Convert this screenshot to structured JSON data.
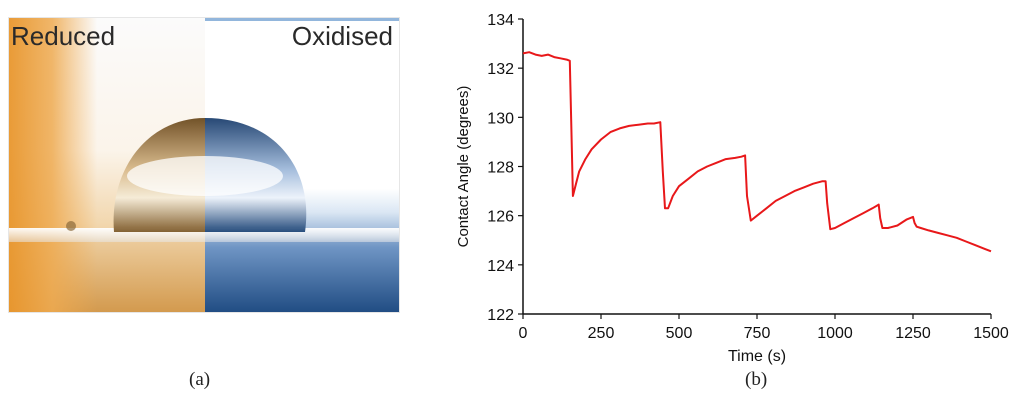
{
  "panel_a": {
    "label_left": "Reduced",
    "label_right": "Oxidised",
    "caption": "(a)",
    "colors": {
      "reduced": "#e8962d",
      "oxidised": "#2e5e98"
    }
  },
  "panel_b": {
    "caption": "(b)"
  },
  "chart_data": {
    "type": "line",
    "title": "",
    "xlabel": "Time (s)",
    "ylabel": "Contact Angle (degrees)",
    "xlim": [
      0,
      1500
    ],
    "ylim": [
      122,
      134
    ],
    "xticks": [
      0,
      250,
      500,
      750,
      1000,
      1250,
      1500
    ],
    "yticks": [
      122,
      124,
      126,
      128,
      130,
      132,
      134
    ],
    "grid": false,
    "legend": "none",
    "color": "#e8181a",
    "series": [
      {
        "x": [
          0,
          20,
          40,
          60,
          80,
          100,
          120,
          140,
          150,
          155,
          160,
          170,
          180,
          200,
          220,
          250,
          280,
          310,
          340,
          370,
          400,
          420,
          440,
          448,
          455,
          465,
          480,
          500,
          530,
          560,
          590,
          620,
          650,
          680,
          700,
          712,
          718,
          730,
          750,
          780,
          810,
          840,
          870,
          900,
          930,
          960,
          970,
          975,
          985,
          1000,
          1030,
          1060,
          1090,
          1120,
          1140,
          1145,
          1152,
          1170,
          1200,
          1230,
          1250,
          1255,
          1262,
          1275,
          1300,
          1330,
          1360,
          1390,
          1420,
          1450,
          1480,
          1500
        ],
        "y": [
          132.6,
          132.65,
          132.55,
          132.5,
          132.55,
          132.45,
          132.4,
          132.35,
          132.3,
          129.5,
          126.8,
          127.3,
          127.8,
          128.3,
          128.7,
          129.1,
          129.4,
          129.55,
          129.65,
          129.7,
          129.75,
          129.75,
          129.8,
          127.8,
          126.3,
          126.3,
          126.8,
          127.2,
          127.5,
          127.8,
          128.0,
          128.15,
          128.3,
          128.35,
          128.4,
          128.45,
          126.8,
          125.8,
          126.0,
          126.3,
          126.6,
          126.8,
          127.0,
          127.15,
          127.3,
          127.4,
          127.4,
          126.5,
          125.45,
          125.5,
          125.7,
          125.9,
          126.1,
          126.3,
          126.45,
          125.9,
          125.5,
          125.5,
          125.6,
          125.85,
          125.95,
          125.7,
          125.55,
          125.5,
          125.4,
          125.3,
          125.2,
          125.1,
          124.95,
          124.8,
          124.65,
          124.55
        ]
      }
    ]
  }
}
